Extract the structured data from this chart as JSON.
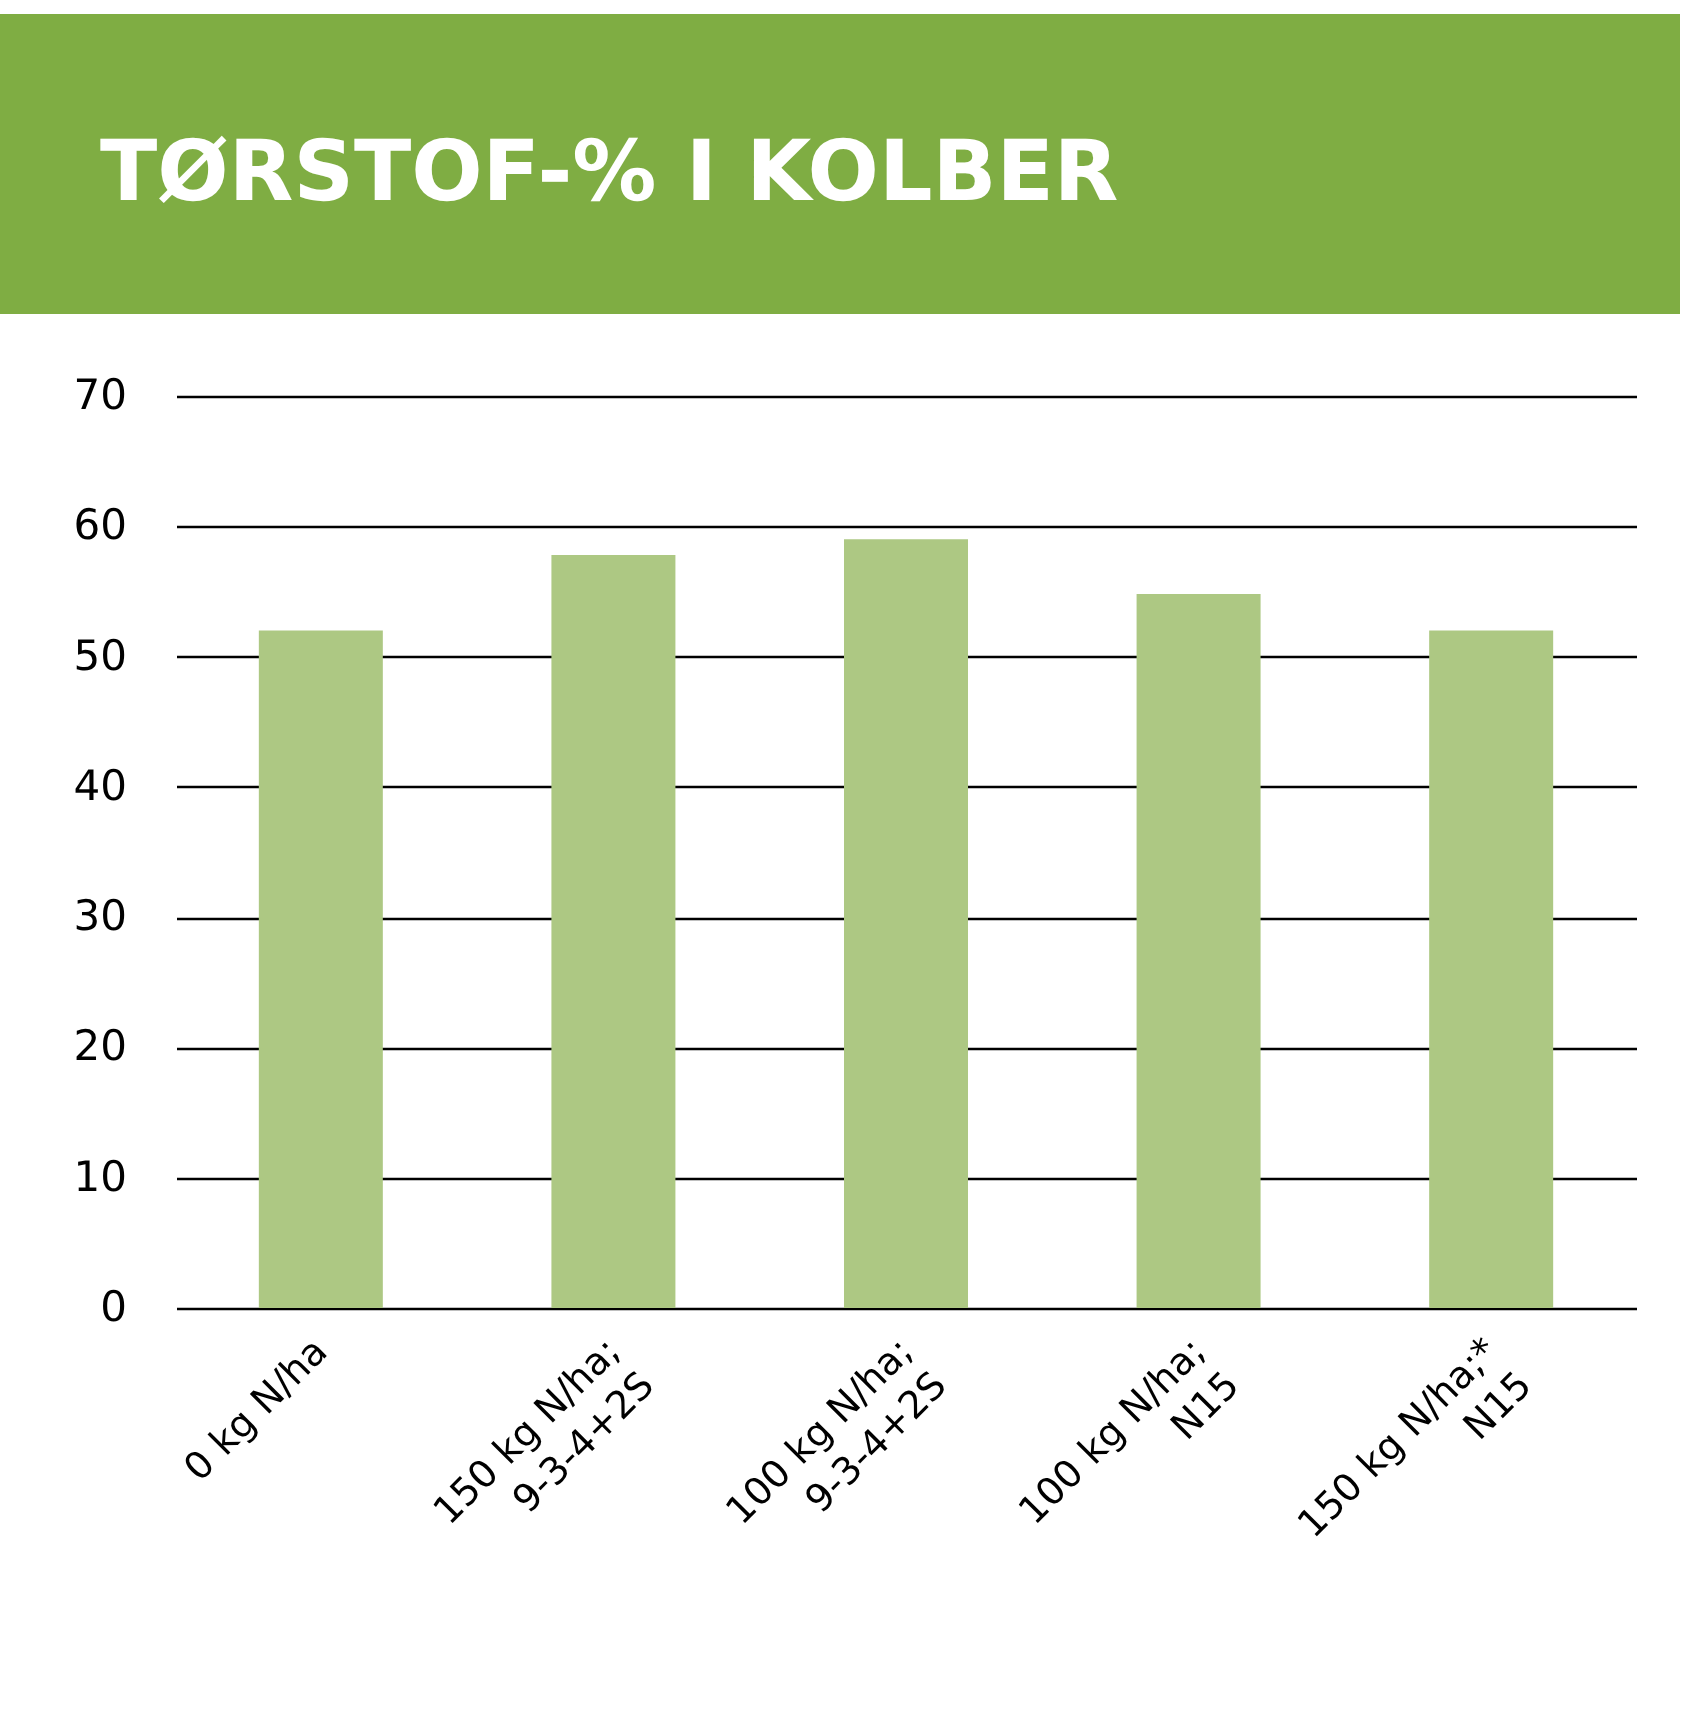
{
  "chart_data": {
    "type": "bar",
    "title": "TØRSTOF-% I KOLBER",
    "categories": [
      "0  kg N/ha",
      "150 kg N/ha;\n9-3-4+2S",
      "100 kg N/ha;\n9-3-4+2S",
      "100 kg N/ha;\nN15",
      "150 kg N/ha;*\nN15"
    ],
    "values": [
      52,
      57.8,
      59,
      54.8,
      52
    ],
    "color": "#adc883",
    "ylim": [
      0,
      70
    ],
    "yticks": [
      0,
      10,
      20,
      30,
      40,
      50,
      60,
      70
    ],
    "grid": "y"
  }
}
